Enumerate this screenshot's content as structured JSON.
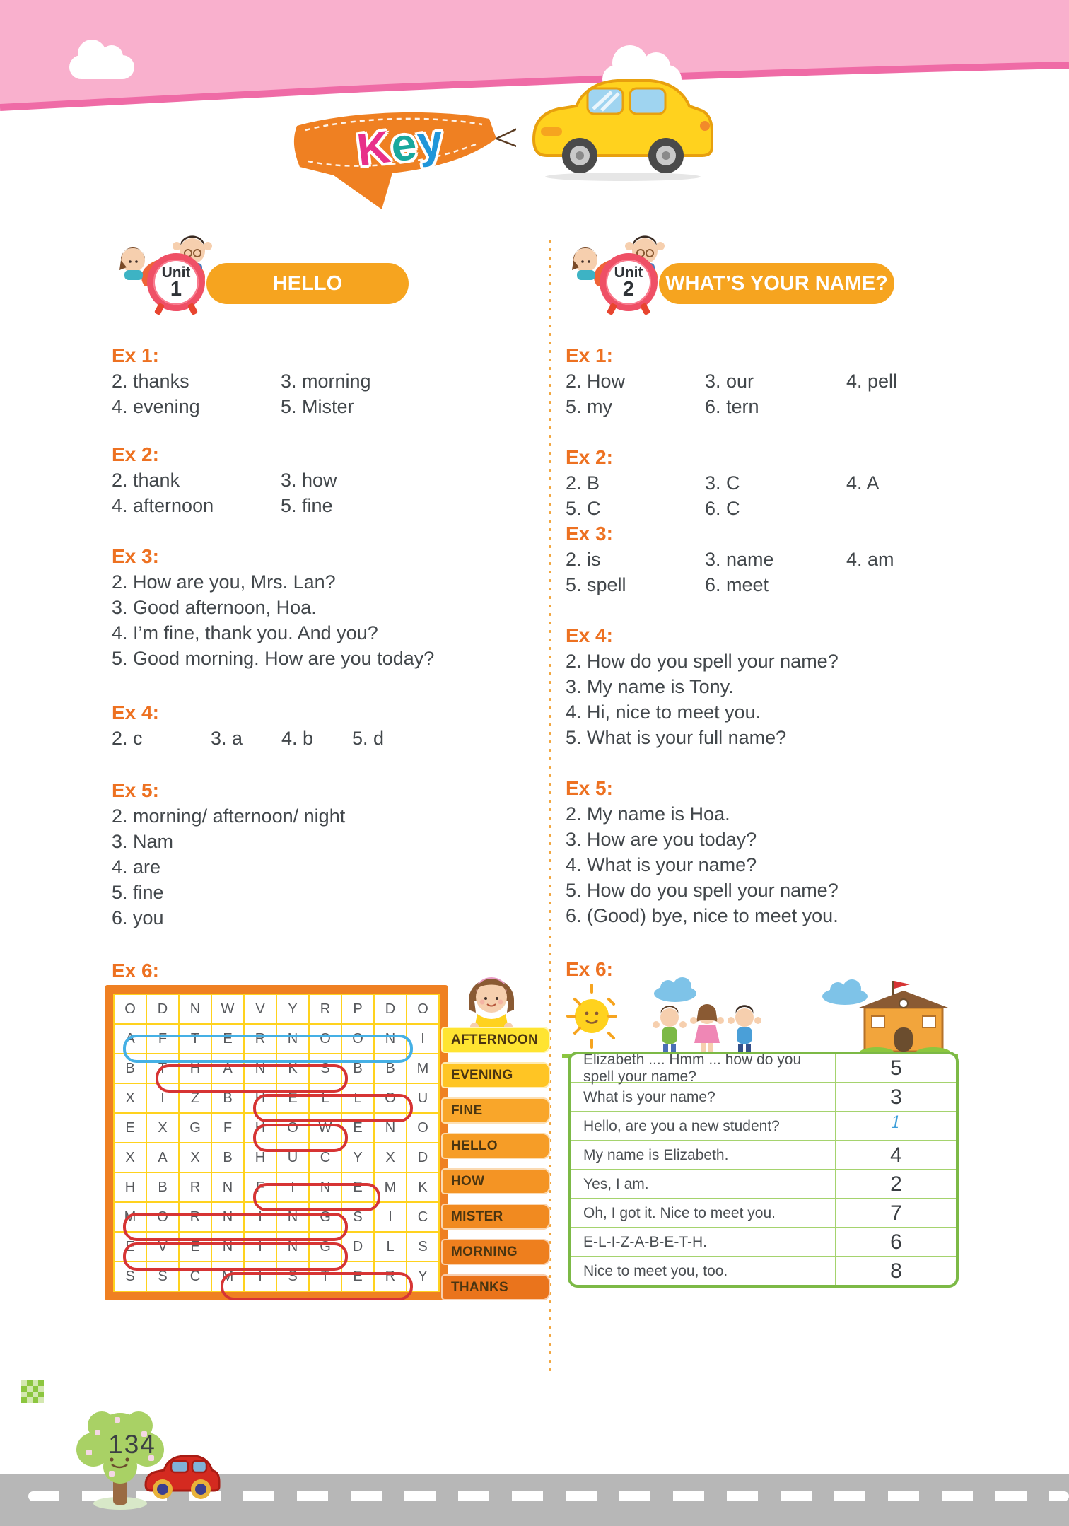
{
  "banner": {
    "title": "Key",
    "letters": [
      {
        "ch": "K",
        "color": "#e8308a"
      },
      {
        "ch": "e",
        "color": "#19a89d"
      },
      {
        "ch": "y",
        "color": "#2196d9"
      }
    ]
  },
  "unit1": {
    "unit_label": "Unit",
    "unit_number": "1",
    "title": "HELLO",
    "ex1": {
      "label": "Ex 1:",
      "rows": [
        [
          "2. thanks",
          "3. morning"
        ],
        [
          "4. evening",
          "5. Mister"
        ]
      ]
    },
    "ex2": {
      "label": "Ex 2:",
      "rows": [
        [
          "2. thank",
          "3. how"
        ],
        [
          "4. afternoon",
          "5. fine"
        ]
      ]
    },
    "ex3": {
      "label": "Ex 3:",
      "lines": [
        "2. How are you, Mrs. Lan?",
        "3. Good afternoon, Hoa.",
        "4. I’m fine, thank you. And you?",
        "5. Good morning. How are you today?"
      ]
    },
    "ex4": {
      "label": "Ex 4:",
      "rows": [
        [
          "2. c",
          "3. a",
          "4. b",
          "5. d"
        ]
      ]
    },
    "ex5": {
      "label": "Ex 5:",
      "lines": [
        "2. morning/ afternoon/ night",
        "3. Nam",
        "4. are",
        "5. fine",
        "6. you"
      ]
    },
    "ex6": {
      "label": "Ex 6:",
      "wordsearch": {
        "grid": [
          [
            "O",
            "D",
            "N",
            "W",
            "V",
            "Y",
            "R",
            "P",
            "D",
            "O"
          ],
          [
            "A",
            "F",
            "T",
            "E",
            "R",
            "N",
            "O",
            "O",
            "N",
            "I"
          ],
          [
            "B",
            "T",
            "H",
            "A",
            "N",
            "K",
            "S",
            "B",
            "B",
            "M"
          ],
          [
            "X",
            "I",
            "Z",
            "B",
            "H",
            "E",
            "L",
            "L",
            "O",
            "U"
          ],
          [
            "E",
            "X",
            "G",
            "F",
            "H",
            "O",
            "W",
            "E",
            "N",
            "O"
          ],
          [
            "X",
            "A",
            "X",
            "B",
            "H",
            "U",
            "C",
            "Y",
            "X",
            "D"
          ],
          [
            "H",
            "B",
            "R",
            "N",
            "F",
            "I",
            "N",
            "E",
            "M",
            "K"
          ],
          [
            "M",
            "O",
            "R",
            "N",
            "I",
            "N",
            "G",
            "S",
            "I",
            "C"
          ],
          [
            "E",
            "V",
            "E",
            "N",
            "I",
            "N",
            "G",
            "D",
            "L",
            "S"
          ],
          [
            "S",
            "S",
            "C",
            "M",
            "I",
            "S",
            "T",
            "E",
            "R",
            "Y"
          ]
        ],
        "highlights": [
          {
            "word": "AFTERNOON",
            "row": 1,
            "col_start": 0,
            "col_end": 8,
            "color": "#45b0e5"
          },
          {
            "word": "THANKS",
            "row": 2,
            "col_start": 1,
            "col_end": 6,
            "color": "#d63434"
          },
          {
            "word": "HELLO",
            "row": 3,
            "col_start": 4,
            "col_end": 8,
            "color": "#d63434"
          },
          {
            "word": "HOW",
            "row": 4,
            "col_start": 4,
            "col_end": 6,
            "color": "#d63434"
          },
          {
            "word": "FINE",
            "row": 6,
            "col_start": 4,
            "col_end": 7,
            "color": "#d63434"
          },
          {
            "word": "MORNING",
            "row": 7,
            "col_start": 0,
            "col_end": 6,
            "color": "#d63434"
          },
          {
            "word": "EVENING",
            "row": 8,
            "col_start": 0,
            "col_end": 6,
            "color": "#d63434"
          },
          {
            "word": "MISTER",
            "row": 9,
            "col_start": 3,
            "col_end": 8,
            "color": "#d63434"
          }
        ]
      },
      "word_list": [
        {
          "label": "AFTERNOON",
          "color": "#ffe431"
        },
        {
          "label": "EVENING",
          "color": "#ffc524"
        },
        {
          "label": "FINE",
          "color": "#f9a62a"
        },
        {
          "label": "HELLO",
          "color": "#f69d27"
        },
        {
          "label": "HOW",
          "color": "#f49424"
        },
        {
          "label": "MISTER",
          "color": "#f18a20"
        },
        {
          "label": "MORNING",
          "color": "#ee7f1e"
        },
        {
          "label": "THANKS",
          "color": "#ea741c"
        }
      ]
    }
  },
  "unit2": {
    "unit_label": "Unit",
    "unit_number": "2",
    "title": "WHAT’S YOUR NAME?",
    "ex1": {
      "label": "Ex 1:",
      "rows": [
        [
          "2. How",
          "3. our",
          "4. pell"
        ],
        [
          "5. my",
          "6. tern"
        ]
      ]
    },
    "ex2": {
      "label": "Ex 2:",
      "rows": [
        [
          "2. B",
          "3. C",
          "4. A"
        ],
        [
          "5. C",
          "6. C"
        ]
      ]
    },
    "ex3": {
      "label": "Ex 3:",
      "rows": [
        [
          "2. is",
          "3. name",
          "4. am"
        ],
        [
          "5. spell",
          "6. meet"
        ]
      ]
    },
    "ex4": {
      "label": "Ex 4:",
      "lines": [
        "2. How do you spell your name?",
        "3. My name is Tony.",
        "4. Hi, nice to meet you.",
        "5. What is your full name?"
      ]
    },
    "ex5": {
      "label": "Ex 5:",
      "lines": [
        "2. My name is Hoa.",
        "3. How are you today?",
        "4. What is your name?",
        "5. How do you spell your name?",
        "6. (Good) bye, nice to meet you."
      ]
    },
    "ex6": {
      "label": "Ex 6:",
      "answer_table": {
        "rows": [
          {
            "sentence": "Elizabeth .... Hmm ... how do you spell your name?",
            "number": "5",
            "given": false
          },
          {
            "sentence": "What is your name?",
            "number": "3",
            "given": false
          },
          {
            "sentence": "Hello, are you a new student?",
            "number": "1",
            "given": true
          },
          {
            "sentence": "My name is Elizabeth.",
            "number": "4",
            "given": false
          },
          {
            "sentence": "Yes, I am.",
            "number": "2",
            "given": false
          },
          {
            "sentence": "Oh, I got it. Nice to meet you.",
            "number": "7",
            "given": false
          },
          {
            "sentence": "E-L-I-Z-A-B-E-T-H.",
            "number": "6",
            "given": false
          },
          {
            "sentence": "Nice to meet you, too.",
            "number": "8",
            "given": false
          }
        ]
      }
    }
  },
  "footer": {
    "page_number": "134"
  },
  "colors": {
    "band_pink": "#f9b0cd",
    "band_stripe": "#ef6ba6",
    "banner_orange": "#ef8022",
    "pill_orange": "#f6a41f",
    "ex_label_orange": "#ed7121",
    "grid_border": "#ef8022",
    "grid_lines": "#ffd21e",
    "circle_red": "#d63434",
    "circle_blue": "#45b0e5",
    "table_green": "#7cb946",
    "road_gray": "#b7b7b7"
  }
}
